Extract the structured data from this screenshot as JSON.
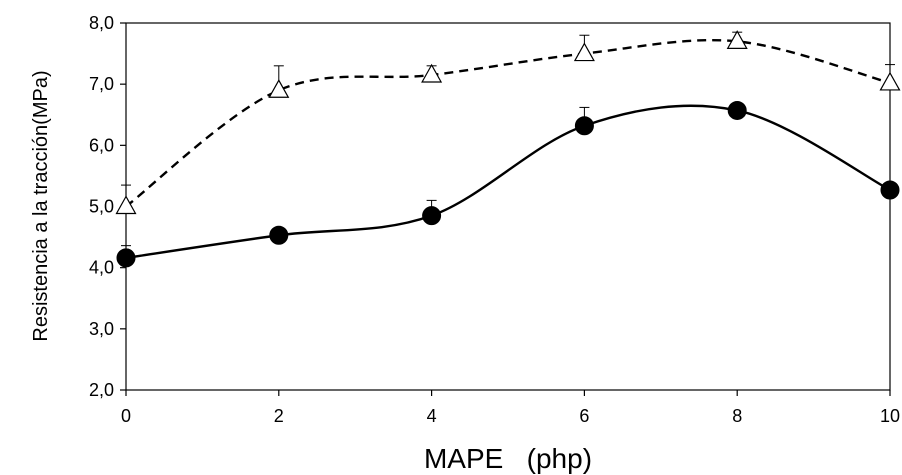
{
  "chart_data": {
    "type": "line",
    "xlabel": "MAPE   (php)",
    "ylabel": "Resistencia a la tracción(MPa)",
    "xlim": [
      0,
      10
    ],
    "ylim": [
      2.0,
      8.0
    ],
    "x_ticks": [
      0,
      2,
      4,
      6,
      8,
      10
    ],
    "x_tick_labels": [
      "0",
      "2",
      "4",
      "6",
      "8",
      "10"
    ],
    "y_ticks": [
      2.0,
      3.0,
      4.0,
      5.0,
      6.0,
      7.0,
      8.0
    ],
    "y_tick_labels": [
      "2,0",
      "3,0",
      "4,0",
      "5,0",
      "6,0",
      "7,0",
      "8,0"
    ],
    "grid": false,
    "legend": "none",
    "series": [
      {
        "marker": "open-triangle",
        "line_style": "dashed",
        "color": "#000000",
        "x": [
          0,
          2,
          4,
          6,
          8,
          10
        ],
        "y": [
          5.0,
          6.9,
          7.15,
          7.5,
          7.7,
          7.02
        ],
        "error": [
          0.35,
          0.4,
          0.15,
          0.3,
          0.15,
          0.3
        ]
      },
      {
        "marker": "filled-circle",
        "line_style": "solid",
        "color": "#000000",
        "x": [
          0,
          2,
          4,
          6,
          8,
          10
        ],
        "y": [
          4.16,
          4.53,
          4.85,
          6.32,
          6.57,
          5.27
        ],
        "error": [
          0.2,
          0.05,
          0.25,
          0.3,
          0.1,
          0.05
        ]
      }
    ]
  }
}
